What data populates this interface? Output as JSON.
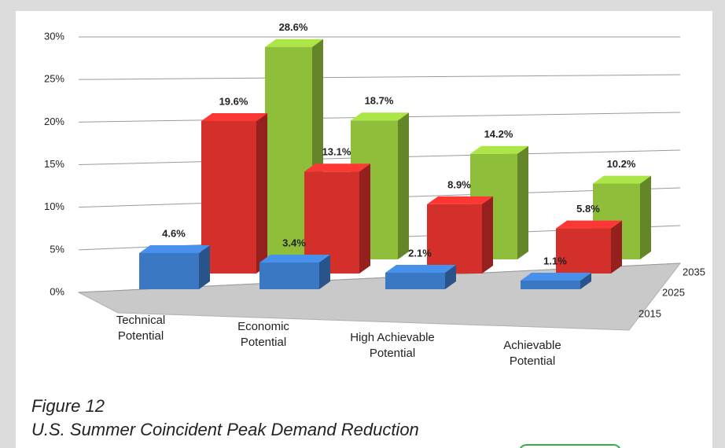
{
  "chart_data": {
    "type": "bar3d",
    "categories": [
      "Technical Potential",
      "Economic Potential",
      "High Achievable Potential",
      "Achievable Potential"
    ],
    "series": [
      {
        "name": "2015",
        "color": "#3b78c4",
        "values": [
          4.6,
          3.4,
          2.1,
          1.1
        ],
        "value_labels": [
          "4.6%",
          "3.4%",
          "2.1%",
          "1.1%"
        ]
      },
      {
        "name": "2025",
        "color": "#d32f2b",
        "values": [
          19.6,
          13.1,
          8.9,
          5.8
        ],
        "value_labels": [
          "19.6%",
          "13.1%",
          "8.9%",
          "5.8%"
        ]
      },
      {
        "name": "2035",
        "color": "#8fbf3a",
        "values": [
          28.6,
          18.7,
          14.2,
          10.2
        ],
        "value_labels": [
          "28.6%",
          "18.7%",
          "14.2%",
          "10.2%"
        ]
      }
    ],
    "ylim": [
      0,
      30
    ],
    "yticks": [
      {
        "value": 0,
        "label": "0%"
      },
      {
        "value": 5,
        "label": "5%"
      },
      {
        "value": 10,
        "label": "10%"
      },
      {
        "value": 15,
        "label": "15%"
      },
      {
        "value": 20,
        "label": "20%"
      },
      {
        "value": 25,
        "label": "25%"
      },
      {
        "value": 30,
        "label": "30%"
      }
    ],
    "grid": true,
    "caption": {
      "figure": "Figure 12",
      "title": "U.S. Summer Coincident Peak Demand Reduction"
    }
  }
}
